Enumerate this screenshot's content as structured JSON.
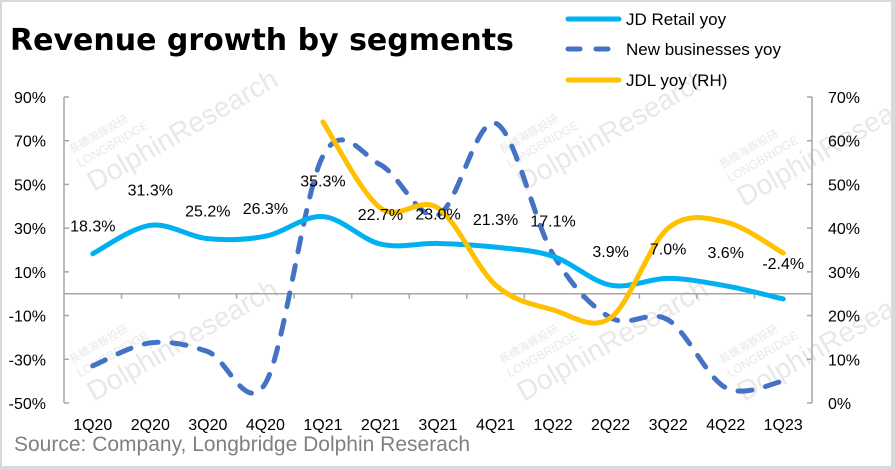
{
  "chart_data": {
    "type": "line",
    "title": "Revenue growth by segments",
    "source": "Source: Company, Longbridge Dolphin Reserach",
    "watermark": [
      "長橋海豚投研",
      "LONGBRIDGE",
      "DolphinResearch"
    ],
    "categories": [
      "1Q20",
      "2Q20",
      "3Q20",
      "4Q20",
      "1Q21",
      "2Q21",
      "3Q21",
      "4Q21",
      "1Q22",
      "2Q22",
      "3Q22",
      "4Q22",
      "1Q23"
    ],
    "left_axis": {
      "ylim": [
        -50,
        90
      ],
      "ticks": [
        90,
        70,
        50,
        30,
        10,
        -10,
        -30,
        -50
      ],
      "tick_labels": [
        "90%",
        "70%",
        "50%",
        "30%",
        "10%",
        "-10%",
        "-30%",
        "-50%"
      ]
    },
    "right_axis": {
      "ylim": [
        0,
        70
      ],
      "ticks": [
        70,
        60,
        50,
        40,
        30,
        20,
        10,
        0
      ],
      "tick_labels": [
        "70%",
        "60%",
        "50%",
        "40%",
        "30%",
        "20%",
        "10%",
        "0%"
      ]
    },
    "series": [
      {
        "name": "JD Retail yoy",
        "axis": "left",
        "style": "solid",
        "color": "#00b0f0",
        "values": [
          18.3,
          31.3,
          25.2,
          26.3,
          35.3,
          22.7,
          23.0,
          21.3,
          17.1,
          3.9,
          7.0,
          3.6,
          -2.4
        ],
        "data_labels": [
          "18.3%",
          "31.3%",
          "25.2%",
          "26.3%",
          "35.3%",
          "22.7%",
          "23.0%",
          "21.3%",
          "17.1%",
          "3.9%",
          "7.0%",
          "3.6%",
          "-2.4%"
        ]
      },
      {
        "name": "New businesses yoy",
        "axis": "left",
        "style": "dashed",
        "color": "#4472c4",
        "values": [
          -33,
          -22.5,
          -26.5,
          -41,
          63,
          59,
          36,
          78,
          18,
          -11,
          -12,
          -43,
          -40
        ]
      },
      {
        "name": "JDL yoy (RH)",
        "axis": "right",
        "style": "solid",
        "color": "#ffc000",
        "values": [
          null,
          null,
          null,
          null,
          64.3,
          44.6,
          44.6,
          27,
          21.3,
          19.5,
          40,
          41.4,
          34.3
        ]
      }
    ],
    "legend": {
      "position": "top-right",
      "entries": [
        "JD Retail yoy",
        "New businesses yoy",
        "JDL yoy (RH)"
      ]
    },
    "grid": false
  }
}
